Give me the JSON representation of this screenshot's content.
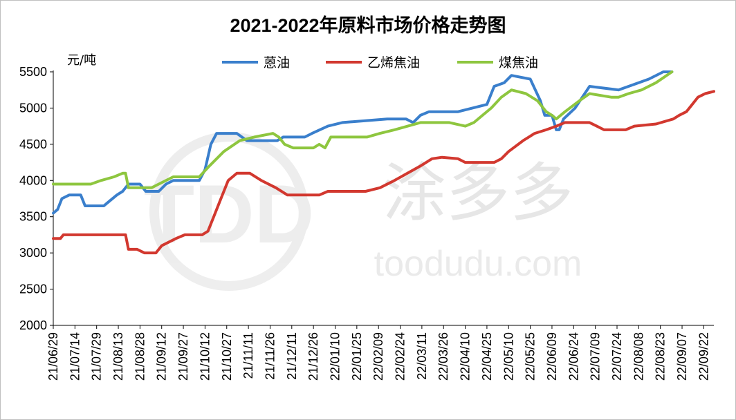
{
  "chart_data": {
    "type": "line",
    "title": "2021-2022年原料市场价格走势图",
    "ylabel": "元/吨",
    "xlabel": "",
    "ylim": [
      2000,
      5500
    ],
    "yticks": [
      2000,
      2500,
      3000,
      3500,
      4000,
      4500,
      5000,
      5500
    ],
    "xlim": [
      "21/06/29",
      "22/09/29"
    ],
    "x_tick_labels": [
      "21/06/29",
      "21/07/14",
      "21/07/29",
      "21/08/13",
      "21/08/28",
      "21/09/12",
      "21/09/27",
      "21/10/12",
      "21/10/27",
      "21/11/11",
      "21/11/26",
      "21/12/11",
      "21/12/26",
      "22/01/10",
      "22/01/25",
      "22/02/09",
      "22/02/24",
      "22/03/11",
      "22/03/26",
      "22/04/10",
      "22/04/25",
      "22/05/10",
      "22/05/25",
      "22/06/09",
      "22/06/24",
      "22/07/09",
      "22/07/24",
      "22/08/08",
      "22/08/23",
      "22/09/07",
      "22/09/22"
    ],
    "grid": false,
    "legend_position": "top",
    "series": [
      {
        "name": "蒽油",
        "color": "#3a7fcc",
        "points": [
          [
            "21/06/29",
            3550
          ],
          [
            "21/07/02",
            3600
          ],
          [
            "21/07/05",
            3750
          ],
          [
            "21/07/10",
            3800
          ],
          [
            "21/07/18",
            3800
          ],
          [
            "21/07/21",
            3650
          ],
          [
            "21/08/03",
            3650
          ],
          [
            "21/08/06",
            3700
          ],
          [
            "21/08/12",
            3800
          ],
          [
            "21/08/16",
            3850
          ],
          [
            "21/08/20",
            3950
          ],
          [
            "21/08/28",
            3950
          ],
          [
            "21/09/01",
            3850
          ],
          [
            "21/09/10",
            3850
          ],
          [
            "21/09/15",
            3950
          ],
          [
            "21/09/20",
            4000
          ],
          [
            "21/10/08",
            4000
          ],
          [
            "21/10/12",
            4150
          ],
          [
            "21/10/16",
            4500
          ],
          [
            "21/10/20",
            4650
          ],
          [
            "21/11/03",
            4650
          ],
          [
            "21/11/10",
            4550
          ],
          [
            "21/12/01",
            4550
          ],
          [
            "21/12/05",
            4600
          ],
          [
            "21/12/20",
            4600
          ],
          [
            "21/12/25",
            4650
          ],
          [
            "22/01/05",
            4750
          ],
          [
            "22/01/15",
            4800
          ],
          [
            "22/02/15",
            4850
          ],
          [
            "22/02/28",
            4850
          ],
          [
            "22/03/05",
            4800
          ],
          [
            "22/03/10",
            4900
          ],
          [
            "22/03/16",
            4950
          ],
          [
            "22/04/05",
            4950
          ],
          [
            "22/04/15",
            5000
          ],
          [
            "22/04/25",
            5050
          ],
          [
            "22/04/30",
            5300
          ],
          [
            "22/05/07",
            5350
          ],
          [
            "22/05/12",
            5450
          ],
          [
            "22/05/25",
            5400
          ],
          [
            "22/06/01",
            5100
          ],
          [
            "22/06/04",
            4900
          ],
          [
            "22/06/09",
            4900
          ],
          [
            "22/06/12",
            4700
          ],
          [
            "22/06/14",
            4700
          ],
          [
            "22/06/17",
            4850
          ],
          [
            "22/06/25",
            5000
          ],
          [
            "22/07/05",
            5300
          ],
          [
            "22/07/25",
            5250
          ],
          [
            "22/08/01",
            5300
          ],
          [
            "22/08/15",
            5400
          ],
          [
            "22/08/25",
            5500
          ],
          [
            "22/08/31",
            5500
          ]
        ]
      },
      {
        "name": "乙烯焦油",
        "color": "#d2382f",
        "points": [
          [
            "21/06/29",
            3200
          ],
          [
            "21/07/04",
            3200
          ],
          [
            "21/07/06",
            3250
          ],
          [
            "21/08/18",
            3250
          ],
          [
            "21/08/20",
            3050
          ],
          [
            "21/08/26",
            3050
          ],
          [
            "21/08/31",
            3000
          ],
          [
            "21/09/08",
            3000
          ],
          [
            "21/09/12",
            3100
          ],
          [
            "21/09/22",
            3200
          ],
          [
            "21/09/28",
            3250
          ],
          [
            "21/10/10",
            3250
          ],
          [
            "21/10/14",
            3300
          ],
          [
            "21/10/18",
            3500
          ],
          [
            "21/10/23",
            3750
          ],
          [
            "21/10/28",
            4000
          ],
          [
            "21/11/03",
            4100
          ],
          [
            "21/11/12",
            4100
          ],
          [
            "21/11/20",
            4000
          ],
          [
            "21/11/30",
            3900
          ],
          [
            "21/12/08",
            3800
          ],
          [
            "21/12/16",
            3800
          ],
          [
            "21/12/30",
            3800
          ],
          [
            "22/01/05",
            3850
          ],
          [
            "22/01/25",
            3850
          ],
          [
            "22/01/31",
            3850
          ],
          [
            "22/02/10",
            3900
          ],
          [
            "22/02/20",
            4000
          ],
          [
            "22/03/01",
            4100
          ],
          [
            "22/03/10",
            4200
          ],
          [
            "22/03/18",
            4300
          ],
          [
            "22/03/25",
            4320
          ],
          [
            "22/04/05",
            4300
          ],
          [
            "22/04/10",
            4250
          ],
          [
            "22/04/30",
            4250
          ],
          [
            "22/05/05",
            4300
          ],
          [
            "22/05/10",
            4400
          ],
          [
            "22/05/20",
            4550
          ],
          [
            "22/05/28",
            4650
          ],
          [
            "22/06/05",
            4700
          ],
          [
            "22/06/12",
            4750
          ],
          [
            "22/06/18",
            4800
          ],
          [
            "22/07/05",
            4800
          ],
          [
            "22/07/10",
            4750
          ],
          [
            "22/07/15",
            4700
          ],
          [
            "22/07/30",
            4700
          ],
          [
            "22/08/05",
            4750
          ],
          [
            "22/08/20",
            4780
          ],
          [
            "22/09/01",
            4850
          ],
          [
            "22/09/05",
            4900
          ],
          [
            "22/09/10",
            4950
          ],
          [
            "22/09/18",
            5150
          ],
          [
            "22/09/23",
            5200
          ],
          [
            "22/09/29",
            5230
          ]
        ]
      },
      {
        "name": "煤焦油",
        "color": "#8ec63f",
        "points": [
          [
            "21/06/29",
            3950
          ],
          [
            "21/07/05",
            3950
          ],
          [
            "21/07/10",
            3950
          ],
          [
            "21/07/25",
            3950
          ],
          [
            "21/08/01",
            4000
          ],
          [
            "21/08/10",
            4050
          ],
          [
            "21/08/16",
            4100
          ],
          [
            "21/08/18",
            4100
          ],
          [
            "21/08/20",
            3900
          ],
          [
            "21/09/05",
            3900
          ],
          [
            "21/09/10",
            3950
          ],
          [
            "21/09/20",
            4050
          ],
          [
            "21/10/08",
            4050
          ],
          [
            "21/10/15",
            4200
          ],
          [
            "21/10/25",
            4400
          ],
          [
            "21/11/05",
            4550
          ],
          [
            "21/11/15",
            4600
          ],
          [
            "21/11/28",
            4650
          ],
          [
            "21/12/02",
            4600
          ],
          [
            "21/12/06",
            4500
          ],
          [
            "21/12/12",
            4450
          ],
          [
            "21/12/26",
            4450
          ],
          [
            "21/12/30",
            4500
          ],
          [
            "22/01/03",
            4450
          ],
          [
            "22/01/07",
            4600
          ],
          [
            "22/02/01",
            4600
          ],
          [
            "22/02/10",
            4650
          ],
          [
            "22/02/20",
            4700
          ],
          [
            "22/03/10",
            4800
          ],
          [
            "22/03/30",
            4800
          ],
          [
            "22/04/10",
            4750
          ],
          [
            "22/04/16",
            4800
          ],
          [
            "22/04/22",
            4900
          ],
          [
            "22/04/28",
            5000
          ],
          [
            "22/05/05",
            5150
          ],
          [
            "22/05/12",
            5250
          ],
          [
            "22/05/22",
            5200
          ],
          [
            "22/05/30",
            5100
          ],
          [
            "22/06/05",
            4950
          ],
          [
            "22/06/09",
            4900
          ],
          [
            "22/06/12",
            4850
          ],
          [
            "22/06/18",
            4950
          ],
          [
            "22/06/28",
            5100
          ],
          [
            "22/07/05",
            5200
          ],
          [
            "22/07/20",
            5150
          ],
          [
            "22/07/25",
            5150
          ],
          [
            "22/08/01",
            5200
          ],
          [
            "22/08/10",
            5250
          ],
          [
            "22/08/20",
            5350
          ],
          [
            "22/08/31",
            5500
          ]
        ]
      }
    ]
  }
}
